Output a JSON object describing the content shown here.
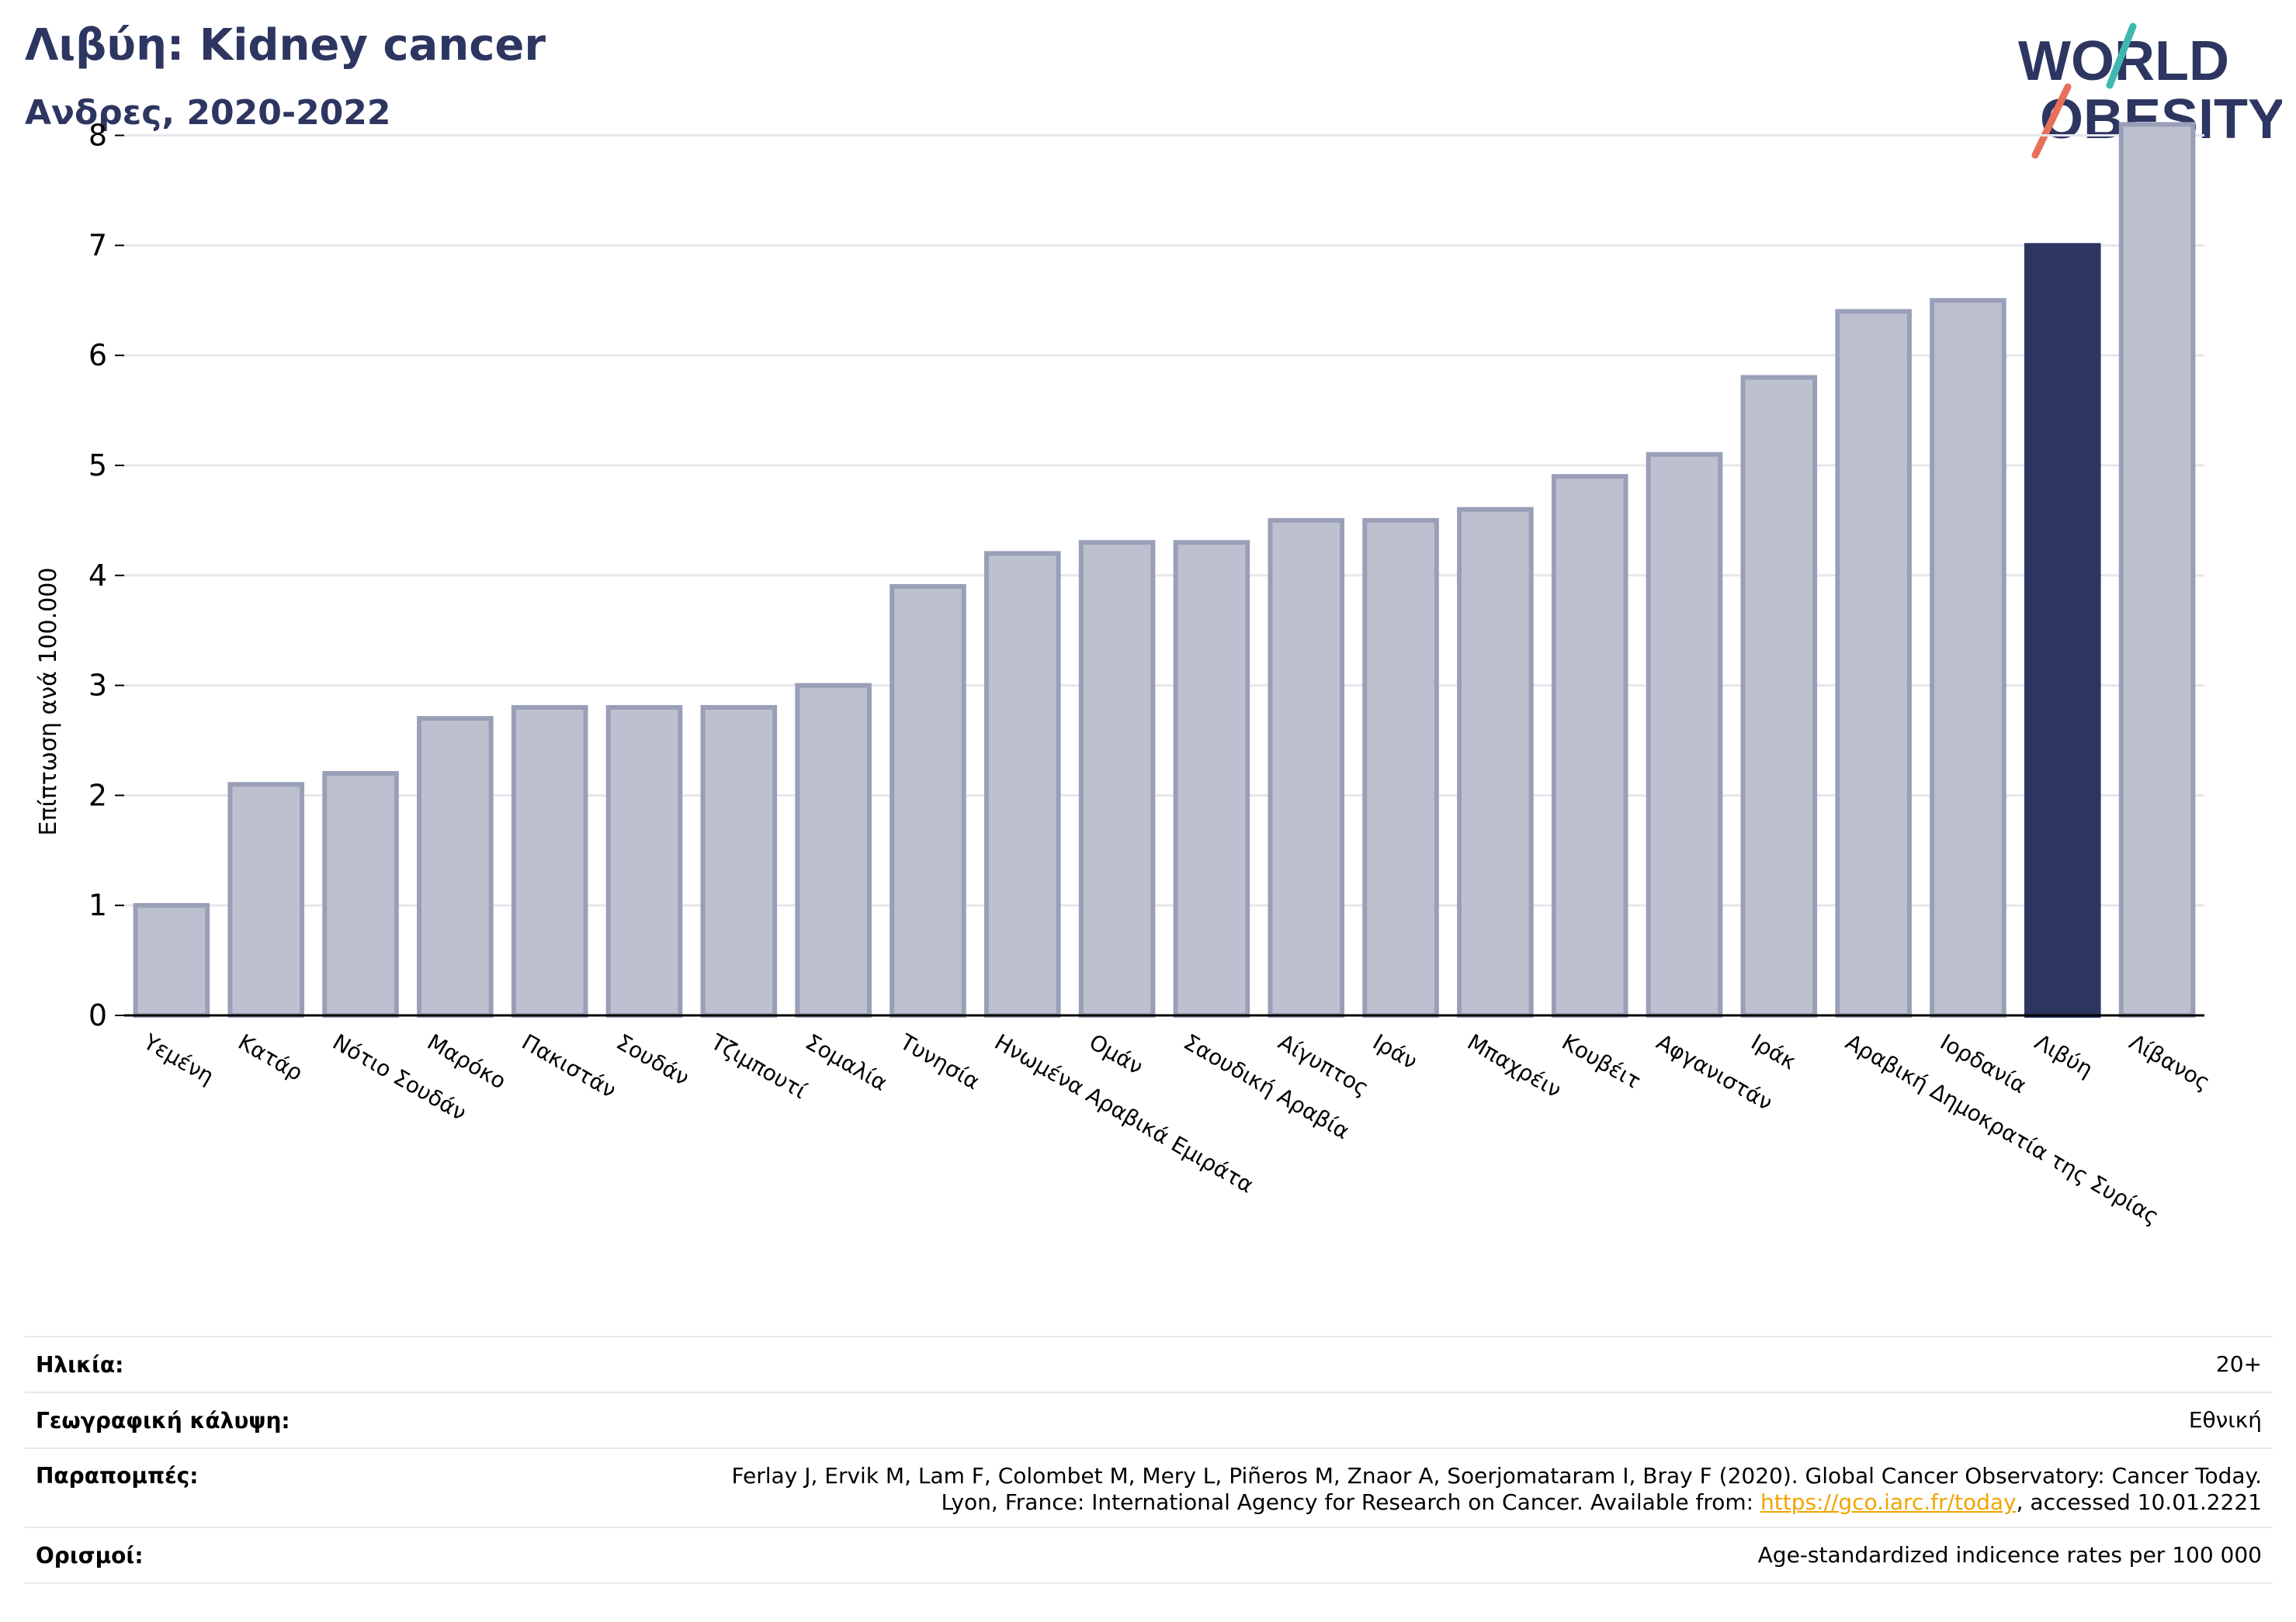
{
  "title": "Λιβύη: Kidney cancer",
  "subtitle": "Ανδρες, 2020-2022",
  "logo": {
    "line1": "WORLD",
    "line2": "OBESITY"
  },
  "chart_data": {
    "type": "bar",
    "ylabel": "Επίπτωση ανά 100.000",
    "xlabel": "",
    "ylim": [
      0,
      8.3
    ],
    "yticks": [
      0,
      1,
      2,
      3,
      4,
      5,
      6,
      7,
      8
    ],
    "grid": true,
    "highlight": "Λιβύη",
    "colors": {
      "bar": "#bdc0ce",
      "bar_edge": "#9a9fb8",
      "highlight": "#2d3561",
      "grid": "#e6e6ee"
    },
    "categories": [
      "Υεμένη",
      "Κατάρ",
      "Νότιο Σουδάν",
      "Μαρόκο",
      "Πακιστάν",
      "Σουδάν",
      "Τζιμπουτί",
      "Σομαλία",
      "Τυνησία",
      "Ηνωμένα Αραβικά Εμιράτα",
      "Ομάν",
      "Σαουδική Αραβία",
      "Αίγυπτος",
      "Ιράν",
      "Μπαχρέιν",
      "Κουβέιτ",
      "Αφγανιστάν",
      "Ιράκ",
      "Αραβική Δημοκρατία της Συρίας",
      "Ιορδανία",
      "Λιβύη",
      "Λίβανος"
    ],
    "values": [
      1.0,
      2.1,
      2.2,
      2.7,
      2.8,
      2.8,
      2.8,
      3.0,
      3.9,
      4.2,
      4.3,
      4.3,
      4.5,
      4.5,
      4.6,
      4.9,
      5.1,
      5.8,
      6.4,
      6.5,
      7.0,
      8.1
    ]
  },
  "footer": {
    "age_label": "Ηλικία:",
    "age_value": "20+",
    "coverage_label": "Γεωγραφική κάλυψη:",
    "coverage_value": "Εθνική",
    "refs_label": "Παραπομπές:",
    "refs_line1": "Ferlay J, Ervik M, Lam F, Colombet M, Mery L, Piñeros M, Znaor A, Soerjomataram I, Bray F (2020). Global Cancer Observatory: Cancer Today.",
    "refs_line2_pre": "Lyon, France: International Agency for Research on Cancer. Available from: ",
    "refs_link": "https://gco.iarc.fr/today",
    "refs_line2_post": ", accessed 10.01.2221",
    "defs_label": "Ορισμοί:",
    "defs_value": "Age-standardized indicence rates per 100 000"
  }
}
